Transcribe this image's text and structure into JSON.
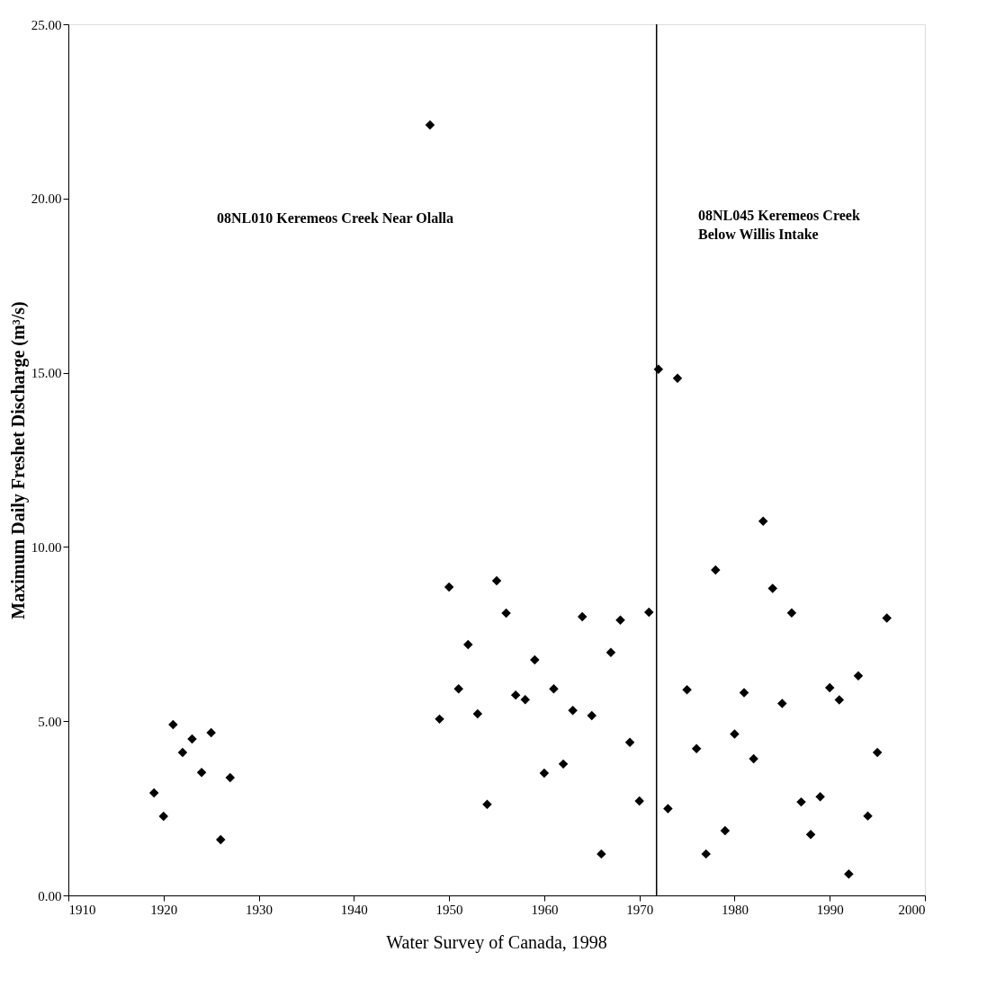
{
  "chart_data": {
    "type": "scatter",
    "ylabel": "Maximum Daily Freshet Discharge (m³/s)",
    "x": [
      1919,
      1920,
      1921,
      1922,
      1923,
      1924,
      1925,
      1926,
      1927,
      1948,
      1949,
      1950,
      1951,
      1952,
      1953,
      1954,
      1955,
      1956,
      1957,
      1958,
      1959,
      1960,
      1961,
      1962,
      1963,
      1964,
      1965,
      1966,
      1967,
      1968,
      1969,
      1970,
      1971,
      1972,
      1973,
      1974,
      1975,
      1976,
      1977,
      1978,
      1979,
      1980,
      1981,
      1982,
      1983,
      1984,
      1985,
      1986,
      1987,
      1988,
      1989,
      1990,
      1991,
      1992,
      1993,
      1994,
      1995,
      1996
    ],
    "series": [
      {
        "color": "#000000",
        "values": [
          2.94,
          2.27,
          4.9,
          4.1,
          4.49,
          3.53,
          4.67,
          1.6,
          3.38,
          22.11,
          5.06,
          8.85,
          5.93,
          7.2,
          5.21,
          2.61,
          9.03,
          8.1,
          5.75,
          5.62,
          6.76,
          3.51,
          5.93,
          3.77,
          5.31,
          8.0,
          5.16,
          1.19,
          6.97,
          7.9,
          4.39,
          2.71,
          8.13,
          15.1,
          2.49,
          14.84,
          5.9,
          4.21,
          1.19,
          9.34,
          1.86,
          4.63,
          5.82,
          3.92,
          10.74,
          8.81,
          5.51,
          8.11,
          2.68,
          1.75,
          2.83,
          5.96,
          5.61,
          0.61,
          6.3,
          2.28,
          4.1,
          7.96
        ]
      }
    ],
    "xlim": [
      1910,
      2000
    ],
    "xticks": [
      1910,
      1920,
      1930,
      1940,
      1950,
      1960,
      1970,
      1980,
      1990,
      2000
    ],
    "ylim": [
      0,
      25
    ],
    "yticks": [
      {
        "value": 0,
        "label": "0.00"
      },
      {
        "value": 5,
        "label": "5.00"
      },
      {
        "value": 10,
        "label": "10.00"
      },
      {
        "value": 15,
        "label": "15.00"
      },
      {
        "value": 20,
        "label": "20.00"
      },
      {
        "value": 25,
        "label": "25.00"
      }
    ],
    "ref_lines": [
      {
        "axis": "x",
        "value": 1971.8,
        "color": "#000000"
      }
    ],
    "annotations": [
      "08NL010  Keremeos Creek Near Olalla",
      "08NL045  Keremeos Creek Below Willis Intake",
      "Water Survey of Canada, 1998"
    ],
    "marker": "diamond",
    "grid": false
  }
}
